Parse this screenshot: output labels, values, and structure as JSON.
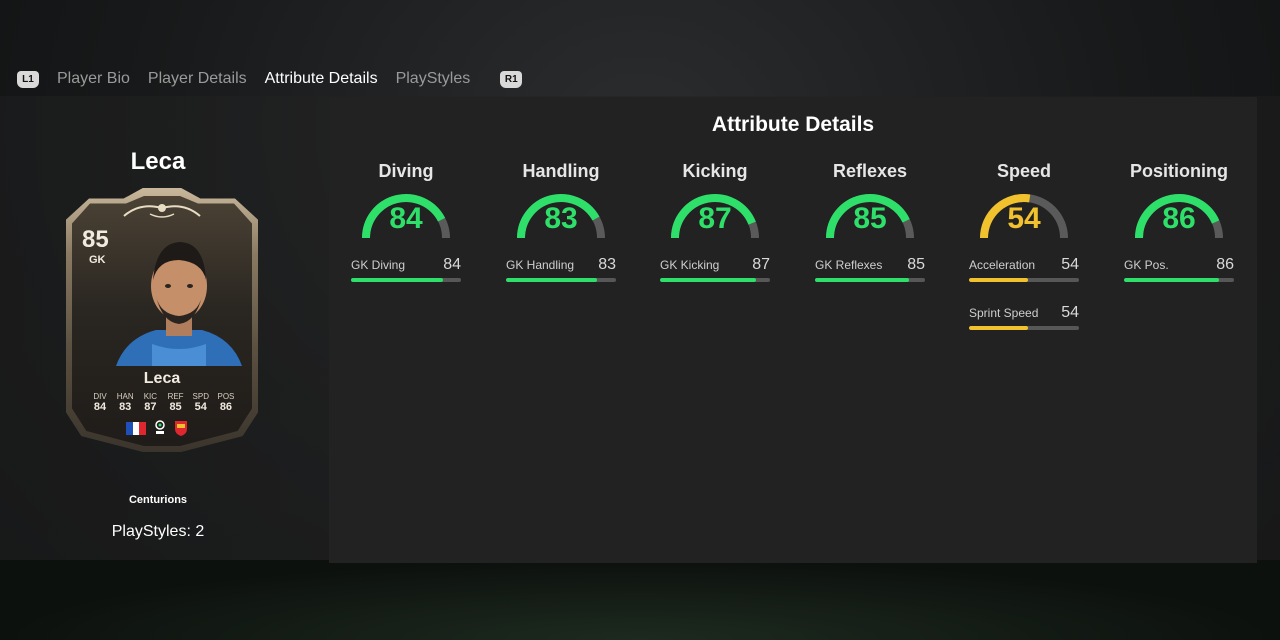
{
  "tabs": {
    "left_button": "L1",
    "right_button": "R1",
    "items": [
      "Player Bio",
      "Player Details",
      "Attribute Details",
      "PlayStyles"
    ],
    "active": "Attribute Details"
  },
  "player": {
    "name": "Leca",
    "card": {
      "rating": "85",
      "position": "GK",
      "name": "Leca",
      "stats": [
        {
          "label": "DIV",
          "value": "84"
        },
        {
          "label": "HAN",
          "value": "83"
        },
        {
          "label": "KIC",
          "value": "87"
        },
        {
          "label": "REF",
          "value": "85"
        },
        {
          "label": "SPD",
          "value": "54"
        },
        {
          "label": "POS",
          "value": "86"
        }
      ]
    },
    "card_type": "Centurions",
    "playstyles": "PlayStyles: 2"
  },
  "attributes": {
    "title": "Attribute Details",
    "colors": {
      "green": "#2ee06a",
      "yellow": "#f2c12e",
      "track": "#5a5a5a"
    },
    "columns": [
      {
        "name": "Diving",
        "value": 84,
        "color": "green",
        "subs": [
          {
            "label": "GK Diving",
            "value": 84
          }
        ]
      },
      {
        "name": "Handling",
        "value": 83,
        "color": "green",
        "subs": [
          {
            "label": "GK Handling",
            "value": 83
          }
        ]
      },
      {
        "name": "Kicking",
        "value": 87,
        "color": "green",
        "subs": [
          {
            "label": "GK Kicking",
            "value": 87
          }
        ]
      },
      {
        "name": "Reflexes",
        "value": 85,
        "color": "green",
        "subs": [
          {
            "label": "GK Reflexes",
            "value": 85
          }
        ]
      },
      {
        "name": "Speed",
        "value": 54,
        "color": "yellow",
        "subs": [
          {
            "label": "Acceleration",
            "value": 54
          },
          {
            "label": "Sprint Speed",
            "value": 54
          }
        ]
      },
      {
        "name": "Positioning",
        "value": 86,
        "color": "green",
        "subs": [
          {
            "label": "GK Pos.",
            "value": 86
          }
        ]
      }
    ]
  }
}
